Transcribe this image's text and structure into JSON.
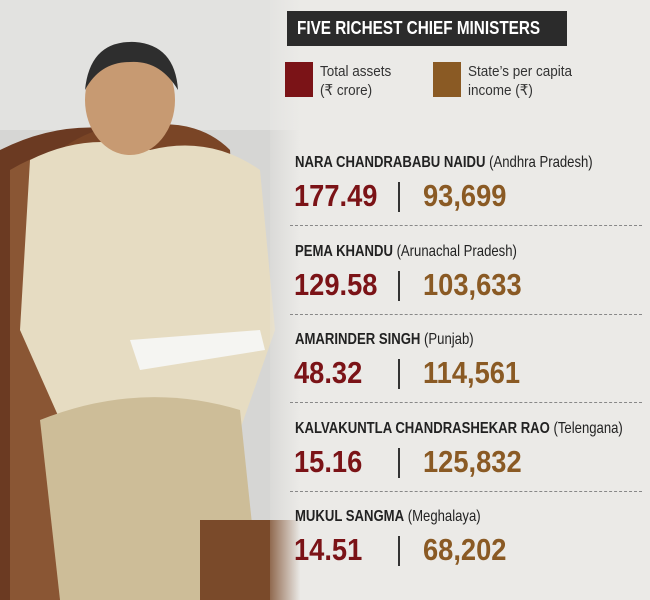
{
  "header": {
    "title": "FIVE RICHEST CHIEF MINISTERS"
  },
  "legend": [
    {
      "lines": [
        "Total assets",
        "(₹ crore)"
      ],
      "color": "#7b1317"
    },
    {
      "lines": [
        "State’s per capita",
        "income (₹)"
      ],
      "color": "#8a5a24"
    }
  ],
  "ministers": [
    {
      "name": "NARA CHANDRABABU NAIDU",
      "state": "(Andhra Pradesh)",
      "assets": "177.49",
      "income": "93,699"
    },
    {
      "name": "PEMA KHANDU",
      "state": "(Arunachal Pradesh)",
      "assets": "129.58",
      "income": "103,633"
    },
    {
      "name": "AMARINDER SINGH",
      "state": "(Punjab)",
      "assets": "48.32",
      "income": "114,561"
    },
    {
      "name": "KALVAKUNTLA CHANDRASHEKAR RAO",
      "state": "(Telengana)",
      "assets": "15.16",
      "income": "125,832"
    },
    {
      "name": "MUKUL SANGMA",
      "state": "(Meghalaya)",
      "assets": "14.51",
      "income": "68,202"
    }
  ]
}
